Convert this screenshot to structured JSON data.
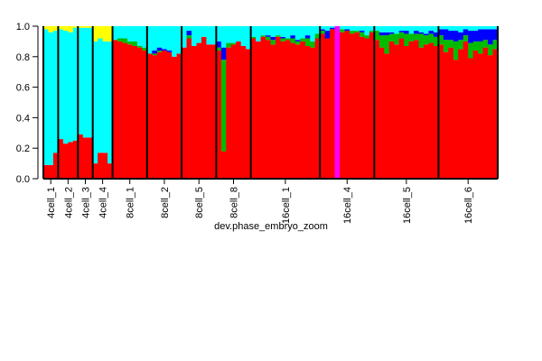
{
  "chart_data": {
    "type": "stacked-bar",
    "xlabel": "dev.phase_embryo_zoom",
    "ylim": [
      0,
      1
    ],
    "yticks": [
      {
        "value": 0,
        "label": "0.0"
      },
      0.2,
      0.4,
      0.6,
      0.8,
      {
        "value": 1,
        "label": "1.0"
      }
    ],
    "groups": [
      {
        "label": "4cell_1",
        "size": 3
      },
      {
        "label": "4cell_2",
        "size": 4
      },
      {
        "label": "4cell_3",
        "size": 3
      },
      {
        "label": "4cell_4",
        "size": 4
      },
      {
        "label": "8cell_1",
        "size": 7
      },
      {
        "label": "8cell_2",
        "size": 7
      },
      {
        "label": "8cell_5",
        "size": 7
      },
      {
        "label": "8cell_8",
        "size": 7
      },
      {
        "label": "16cell_1",
        "size": 14
      },
      {
        "label": "16cell_4",
        "size": 11
      },
      {
        "label": "16cell_5",
        "size": 13
      },
      {
        "label": "16cell_6",
        "size": 12
      }
    ],
    "series": [
      {
        "color": "#ff0000",
        "values": [
          0.09,
          0.09,
          0.17,
          0.26,
          0.23,
          0.24,
          0.25,
          0.29,
          0.27,
          0.27,
          0.1,
          0.17,
          0.17,
          0.1,
          0.91,
          0.9,
          0.89,
          0.88,
          0.87,
          0.86,
          0.84,
          0.82,
          0.81,
          0.83,
          0.84,
          0.83,
          0.8,
          0.82,
          0.86,
          0.92,
          0.87,
          0.89,
          0.93,
          0.88,
          0.88,
          0.84,
          0.18,
          0.86,
          0.88,
          0.9,
          0.87,
          0.85,
          0.92,
          0.9,
          0.93,
          0.91,
          0.88,
          0.93,
          0.9,
          0.91,
          0.89,
          0.88,
          0.9,
          0.87,
          0.86,
          0.92,
          0.95,
          0.92,
          0.98,
          0,
          0.96,
          0.97,
          0.95,
          0.96,
          0.93,
          0.92,
          0.96,
          0.91,
          0.86,
          0.82,
          0.9,
          0.88,
          0.92,
          0.87,
          0.9,
          0.91,
          0.86,
          0.88,
          0.89,
          0.87,
          0.88,
          0.83,
          0.86,
          0.78,
          0.85,
          0.9,
          0.79,
          0.84,
          0.82,
          0.86,
          0.81,
          0.85
        ]
      },
      {
        "color": "#ff00ff",
        "values": [
          0,
          0,
          0,
          0,
          0,
          0,
          0,
          0,
          0,
          0,
          0,
          0,
          0,
          0,
          0,
          0,
          0,
          0,
          0,
          0,
          0,
          0,
          0,
          0,
          0,
          0,
          0,
          0,
          0,
          0,
          0,
          0,
          0,
          0,
          0,
          0,
          0,
          0,
          0,
          0,
          0,
          0,
          0,
          0,
          0,
          0,
          0,
          0,
          0,
          0,
          0,
          0,
          0,
          0,
          0,
          0,
          0,
          0,
          0,
          1,
          0,
          0,
          0,
          0,
          0,
          0,
          0,
          0,
          0,
          0,
          0,
          0,
          0,
          0,
          0,
          0,
          0,
          0,
          0,
          0,
          0,
          0,
          0,
          0,
          0,
          0,
          0,
          0,
          0,
          0,
          0,
          0
        ]
      },
      {
        "color": "#00bb00",
        "values": [
          0,
          0,
          0,
          0,
          0,
          0,
          0,
          0,
          0,
          0,
          0,
          0,
          0,
          0,
          0,
          0.02,
          0.03,
          0.02,
          0.03,
          0.01,
          0.02,
          0,
          0.01,
          0.01,
          0,
          0,
          0,
          0,
          0,
          0.02,
          0,
          0,
          0,
          0,
          0,
          0.02,
          0.6,
          0.03,
          0.01,
          0,
          0,
          0,
          0.01,
          0,
          0.01,
          0.02,
          0.03,
          0.01,
          0.02,
          0.01,
          0.03,
          0.02,
          0.02,
          0.05,
          0.04,
          0.03,
          0.02,
          0,
          0,
          0,
          0.02,
          0,
          0.02,
          0.01,
          0.03,
          0.02,
          0.01,
          0.06,
          0.08,
          0.12,
          0.05,
          0.07,
          0.04,
          0.08,
          0.05,
          0.04,
          0.09,
          0.06,
          0.06,
          0.06,
          0.06,
          0.08,
          0.05,
          0.12,
          0.06,
          0.04,
          0.1,
          0.06,
          0.08,
          0.05,
          0.07,
          0.06
        ]
      },
      {
        "color": "#0000ff",
        "values": [
          0,
          0,
          0,
          0,
          0,
          0,
          0,
          0,
          0,
          0,
          0,
          0,
          0,
          0,
          0,
          0,
          0,
          0,
          0,
          0,
          0,
          0,
          0.02,
          0.02,
          0.01,
          0.01,
          0,
          0,
          0,
          0.03,
          0,
          0,
          0,
          0,
          0,
          0.04,
          0.08,
          0,
          0,
          0,
          0,
          0,
          0,
          0,
          0,
          0.01,
          0.02,
          0,
          0.01,
          0,
          0.02,
          0.01,
          0,
          0.02,
          0,
          0,
          0.01,
          0.05,
          0.01,
          0,
          0,
          0.01,
          0,
          0,
          0.01,
          0,
          0,
          0,
          0.02,
          0.02,
          0.01,
          0,
          0.01,
          0.02,
          0,
          0.02,
          0.01,
          0.01,
          0.02,
          0.03,
          0.04,
          0.07,
          0.06,
          0.07,
          0.05,
          0.04,
          0.08,
          0.07,
          0.08,
          0.07,
          0.1,
          0.07
        ]
      },
      {
        "color": "#00ffff",
        "values": [
          0.89,
          0.87,
          0.8,
          0.72,
          0.74,
          0.72,
          0.74,
          0.7,
          0.72,
          0.72,
          0.8,
          0.75,
          0.73,
          0.8,
          0.09,
          0.08,
          0.08,
          0.1,
          0.1,
          0.13,
          0.14,
          0.18,
          0.16,
          0.14,
          0.15,
          0.16,
          0.2,
          0.18,
          0.14,
          0.03,
          0.13,
          0.11,
          0.07,
          0.12,
          0.12,
          0.1,
          0.14,
          0.11,
          0.11,
          0.1,
          0.13,
          0.15,
          0.07,
          0.1,
          0.06,
          0.06,
          0.07,
          0.06,
          0.07,
          0.08,
          0.06,
          0.09,
          0.08,
          0.06,
          0.1,
          0.05,
          0.02,
          0.03,
          0.01,
          0,
          0.02,
          0.02,
          0.03,
          0.03,
          0.03,
          0.06,
          0.03,
          0.03,
          0.04,
          0.04,
          0.04,
          0.05,
          0.03,
          0.03,
          0.05,
          0.03,
          0.04,
          0.05,
          0.03,
          0.04,
          0.02,
          0.02,
          0.03,
          0.03,
          0.04,
          0.02,
          0.03,
          0.03,
          0.02,
          0.02,
          0.02,
          0.02
        ]
      },
      {
        "color": "#ffff00",
        "values": [
          0.02,
          0.04,
          0.03,
          0.02,
          0.03,
          0.04,
          0.01,
          0.01,
          0.01,
          0.01,
          0.1,
          0.08,
          0.1,
          0.1,
          0,
          0,
          0,
          0,
          0,
          0,
          0,
          0,
          0,
          0,
          0,
          0,
          0,
          0,
          0,
          0,
          0,
          0,
          0,
          0,
          0,
          0,
          0,
          0,
          0,
          0,
          0,
          0,
          0,
          0,
          0,
          0,
          0,
          0,
          0,
          0,
          0,
          0,
          0,
          0,
          0,
          0,
          0,
          0,
          0,
          0,
          0,
          0,
          0,
          0,
          0,
          0,
          0,
          0,
          0,
          0,
          0,
          0,
          0,
          0,
          0,
          0,
          0,
          0,
          0,
          0,
          0,
          0,
          0,
          0,
          0,
          0,
          0,
          0,
          0,
          0,
          0,
          0
        ]
      }
    ]
  }
}
